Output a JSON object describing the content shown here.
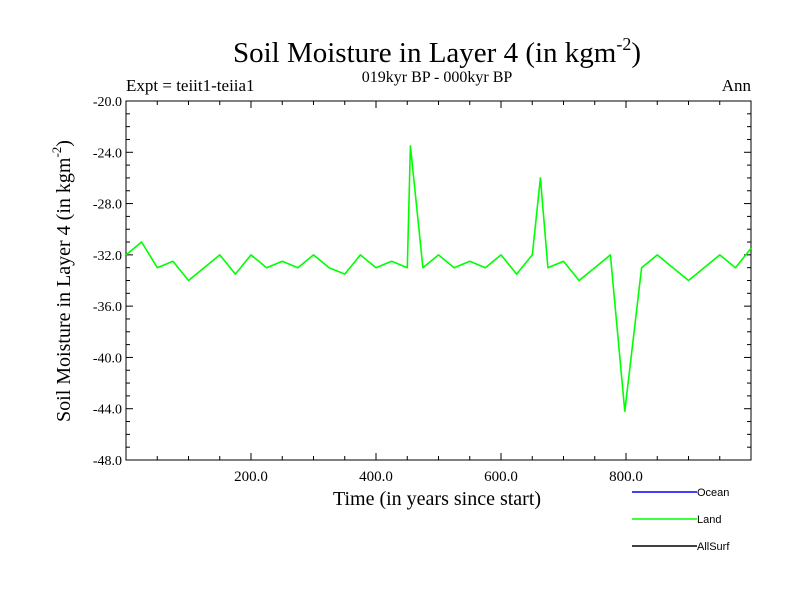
{
  "chart_data": {
    "type": "line",
    "title": "Soil Moisture in Layer 4 (in kgm",
    "title_sup": "-2",
    "title_close": ")",
    "subtitle": "019kyr BP - 000kyr BP",
    "left_label": "Expt = teiit1-teiia1",
    "right_label": "Ann",
    "xlabel": "Time (in years since start)",
    "ylabel": "Soil Moisture in Layer 4 (in kgm",
    "ylabel_sup": "-2",
    "ylabel_close": ")",
    "xlim": [
      0,
      1000
    ],
    "ylim": [
      -48,
      -20
    ],
    "x_ticks": [
      {
        "value": 200,
        "label": "200.0"
      },
      {
        "value": 400,
        "label": "400.0"
      },
      {
        "value": 600,
        "label": "600.0"
      },
      {
        "value": 800,
        "label": "800.0"
      }
    ],
    "y_ticks": [
      {
        "value": -20,
        "label": "-20.0"
      },
      {
        "value": -24,
        "label": "-24.0"
      },
      {
        "value": -28,
        "label": "-28.0"
      },
      {
        "value": -32,
        "label": "-32.0"
      },
      {
        "value": -36,
        "label": "-36.0"
      },
      {
        "value": -40,
        "label": "-40.0"
      },
      {
        "value": -44,
        "label": "-44.0"
      },
      {
        "value": -48,
        "label": "-48.0"
      }
    ],
    "legend": [
      {
        "name": "Ocean",
        "color": "#0000ff"
      },
      {
        "name": "Land",
        "color": "#00ff00"
      },
      {
        "name": "AllSurf",
        "color": "#000000"
      }
    ],
    "legend_position": "bottom-right",
    "series": [
      {
        "name": "Land",
        "color": "#00ff00",
        "x": [
          0,
          25,
          50,
          75,
          100,
          125,
          150,
          175,
          200,
          225,
          250,
          275,
          300,
          325,
          350,
          375,
          400,
          425,
          450,
          455,
          475,
          500,
          525,
          550,
          575,
          600,
          625,
          650,
          663,
          675,
          700,
          725,
          750,
          775,
          798,
          825,
          850,
          875,
          900,
          925,
          950,
          975,
          1000
        ],
        "y": [
          -32,
          -31,
          -33,
          -32.5,
          -34,
          -33,
          -32,
          -33.5,
          -32,
          -33,
          -32.5,
          -33,
          -32,
          -33,
          -33.5,
          -32,
          -33,
          -32.5,
          -33,
          -23.5,
          -33,
          -32,
          -33,
          -32.5,
          -33,
          -32,
          -33.5,
          -32,
          -26,
          -33,
          -32.5,
          -34,
          -33,
          -32,
          -44.2,
          -33,
          -32,
          -33,
          -34,
          -33,
          -32,
          -33,
          -31.5
        ]
      }
    ]
  }
}
